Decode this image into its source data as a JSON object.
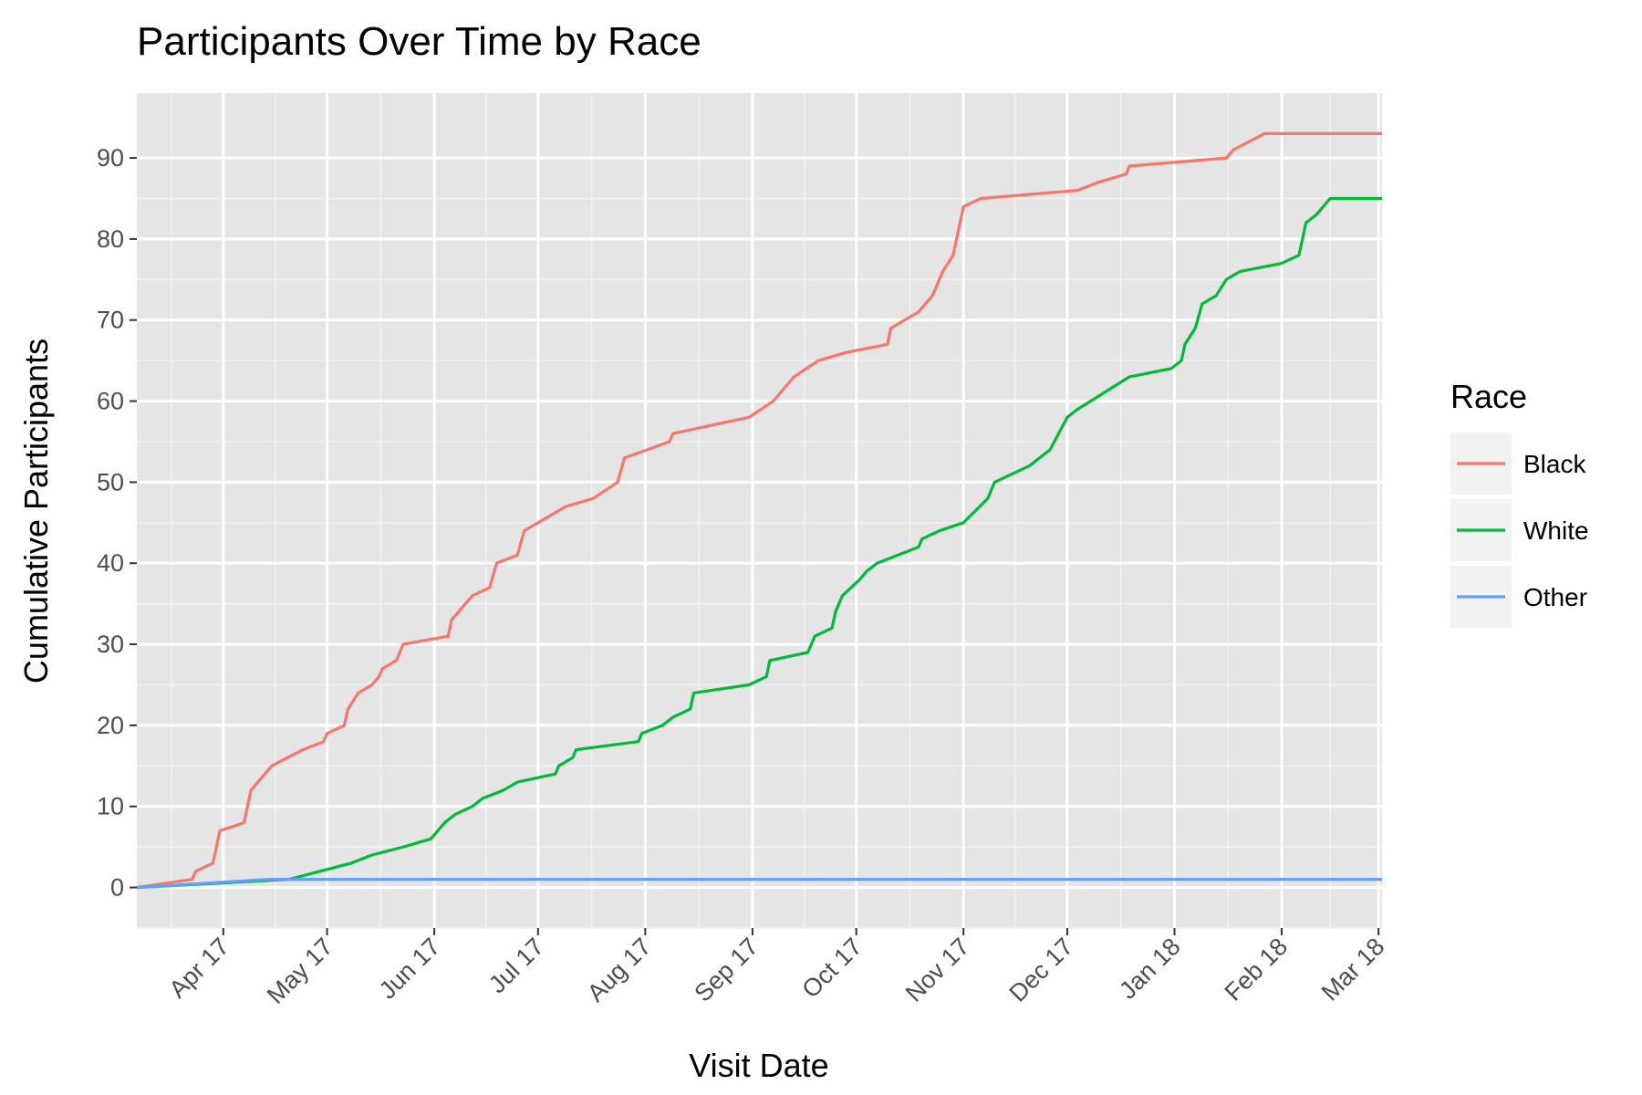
{
  "chart_data": {
    "type": "line",
    "title": "Participants Over Time by Race",
    "xlabel": "Visit Date",
    "ylabel": "Cumulative Participants",
    "grid": true,
    "background": "#e5e5e5",
    "legend_position": "right",
    "legend_title": "Race",
    "xlim": [
      "2017-03-07",
      "2018-03-02"
    ],
    "ylim": [
      -5,
      98
    ],
    "x_ticks": [
      {
        "label": "Apr 17",
        "date": "2017-04-01"
      },
      {
        "label": "May 17",
        "date": "2017-05-01"
      },
      {
        "label": "Jun 17",
        "date": "2017-06-01"
      },
      {
        "label": "Jul 17",
        "date": "2017-07-01"
      },
      {
        "label": "Aug 17",
        "date": "2017-08-01"
      },
      {
        "label": "Sep 17",
        "date": "2017-09-01"
      },
      {
        "label": "Oct 17",
        "date": "2017-10-01"
      },
      {
        "label": "Nov 17",
        "date": "2017-11-01"
      },
      {
        "label": "Dec 17",
        "date": "2017-12-01"
      },
      {
        "label": "Jan 18",
        "date": "2018-01-01"
      },
      {
        "label": "Feb 18",
        "date": "2018-02-01"
      },
      {
        "label": "Mar 18",
        "date": "2018-03-01"
      }
    ],
    "y_ticks": [
      0,
      10,
      20,
      30,
      40,
      50,
      60,
      70,
      80,
      90
    ],
    "series": [
      {
        "name": "Black",
        "color": "#f8766d",
        "points": [
          [
            "2017-03-07",
            0
          ],
          [
            "2017-03-23",
            1
          ],
          [
            "2017-03-24",
            2
          ],
          [
            "2017-03-29",
            3
          ],
          [
            "2017-03-31",
            7
          ],
          [
            "2017-04-07",
            8
          ],
          [
            "2017-04-09",
            12
          ],
          [
            "2017-04-13",
            14
          ],
          [
            "2017-04-15",
            15
          ],
          [
            "2017-04-24",
            17
          ],
          [
            "2017-04-30",
            18
          ],
          [
            "2017-05-01",
            19
          ],
          [
            "2017-05-06",
            20
          ],
          [
            "2017-05-07",
            22
          ],
          [
            "2017-05-10",
            24
          ],
          [
            "2017-05-14",
            25
          ],
          [
            "2017-05-16",
            26
          ],
          [
            "2017-05-17",
            27
          ],
          [
            "2017-05-21",
            28
          ],
          [
            "2017-05-23",
            30
          ],
          [
            "2017-06-05",
            31
          ],
          [
            "2017-06-06",
            33
          ],
          [
            "2017-06-12",
            36
          ],
          [
            "2017-06-17",
            37
          ],
          [
            "2017-06-19",
            40
          ],
          [
            "2017-06-25",
            41
          ],
          [
            "2017-06-27",
            44
          ],
          [
            "2017-07-01",
            45
          ],
          [
            "2017-07-09",
            47
          ],
          [
            "2017-07-17",
            48
          ],
          [
            "2017-07-24",
            50
          ],
          [
            "2017-07-26",
            53
          ],
          [
            "2017-08-08",
            55
          ],
          [
            "2017-08-09",
            56
          ],
          [
            "2017-08-31",
            58
          ],
          [
            "2017-09-07",
            60
          ],
          [
            "2017-09-13",
            63
          ],
          [
            "2017-09-20",
            65
          ],
          [
            "2017-09-28",
            66
          ],
          [
            "2017-10-10",
            67
          ],
          [
            "2017-10-11",
            69
          ],
          [
            "2017-10-19",
            71
          ],
          [
            "2017-10-23",
            73
          ],
          [
            "2017-10-26",
            76
          ],
          [
            "2017-10-29",
            78
          ],
          [
            "2017-11-01",
            84
          ],
          [
            "2017-11-06",
            85
          ],
          [
            "2017-12-04",
            86
          ],
          [
            "2017-12-10",
            87
          ],
          [
            "2017-12-18",
            88
          ],
          [
            "2017-12-19",
            89
          ],
          [
            "2018-01-16",
            90
          ],
          [
            "2018-01-18",
            91
          ],
          [
            "2018-01-27",
            93
          ],
          [
            "2018-03-02",
            93
          ]
        ]
      },
      {
        "name": "White",
        "color": "#00ba38",
        "points": [
          [
            "2017-03-07",
            0
          ],
          [
            "2017-04-20",
            1
          ],
          [
            "2017-05-08",
            3
          ],
          [
            "2017-05-14",
            4
          ],
          [
            "2017-05-23",
            5
          ],
          [
            "2017-05-31",
            6
          ],
          [
            "2017-06-04",
            8
          ],
          [
            "2017-06-07",
            9
          ],
          [
            "2017-06-12",
            10
          ],
          [
            "2017-06-15",
            11
          ],
          [
            "2017-06-21",
            12
          ],
          [
            "2017-06-25",
            13
          ],
          [
            "2017-07-06",
            14
          ],
          [
            "2017-07-07",
            15
          ],
          [
            "2017-07-11",
            16
          ],
          [
            "2017-07-12",
            17
          ],
          [
            "2017-07-30",
            18
          ],
          [
            "2017-07-31",
            19
          ],
          [
            "2017-08-06",
            20
          ],
          [
            "2017-08-09",
            21
          ],
          [
            "2017-08-14",
            22
          ],
          [
            "2017-08-15",
            24
          ],
          [
            "2017-08-31",
            25
          ],
          [
            "2017-09-05",
            26
          ],
          [
            "2017-09-06",
            28
          ],
          [
            "2017-09-17",
            29
          ],
          [
            "2017-09-19",
            31
          ],
          [
            "2017-09-24",
            32
          ],
          [
            "2017-09-25",
            34
          ],
          [
            "2017-09-27",
            36
          ],
          [
            "2017-10-02",
            38
          ],
          [
            "2017-10-04",
            39
          ],
          [
            "2017-10-07",
            40
          ],
          [
            "2017-10-19",
            42
          ],
          [
            "2017-10-20",
            43
          ],
          [
            "2017-10-25",
            44
          ],
          [
            "2017-11-01",
            45
          ],
          [
            "2017-11-08",
            48
          ],
          [
            "2017-11-10",
            50
          ],
          [
            "2017-11-20",
            52
          ],
          [
            "2017-11-26",
            54
          ],
          [
            "2017-12-01",
            58
          ],
          [
            "2017-12-04",
            59
          ],
          [
            "2017-12-19",
            63
          ],
          [
            "2017-12-31",
            64
          ],
          [
            "2018-01-03",
            65
          ],
          [
            "2018-01-04",
            67
          ],
          [
            "2018-01-07",
            69
          ],
          [
            "2018-01-09",
            72
          ],
          [
            "2018-01-13",
            73
          ],
          [
            "2018-01-16",
            75
          ],
          [
            "2018-01-20",
            76
          ],
          [
            "2018-02-01",
            77
          ],
          [
            "2018-02-06",
            78
          ],
          [
            "2018-02-08",
            82
          ],
          [
            "2018-02-11",
            83
          ],
          [
            "2018-02-15",
            85
          ],
          [
            "2018-03-02",
            85
          ]
        ]
      },
      {
        "name": "Other",
        "color": "#619cff",
        "points": [
          [
            "2017-03-07",
            0
          ],
          [
            "2017-04-14",
            1
          ],
          [
            "2018-03-02",
            1
          ]
        ]
      }
    ]
  }
}
